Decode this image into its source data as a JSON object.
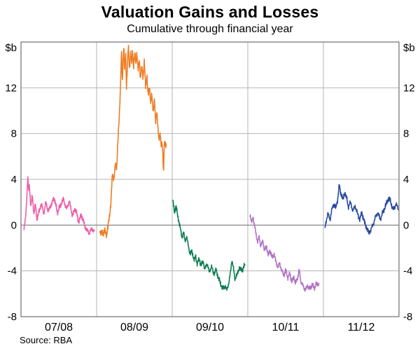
{
  "header": {
    "title": "Valuation Gains and Losses",
    "subtitle": "Cumulative through financial year"
  },
  "footer": {
    "source": "Source: RBA"
  },
  "chart_data": {
    "type": "line",
    "title": "Valuation Gains and Losses",
    "subtitle": "Cumulative through financial year",
    "xlabel": "",
    "ylabel": "$b",
    "unit_label": "$b",
    "ylim": [
      -8,
      16
    ],
    "yticks": [
      -8,
      -4,
      0,
      4,
      8,
      12
    ],
    "grid": true,
    "legend": "none (series labelled by x-axis financial years)",
    "x_categories": [
      "07/08",
      "08/09",
      "09/10",
      "10/11",
      "11/12"
    ],
    "source": "Source: RBA",
    "style": {
      "background": "#ffffff",
      "grid_color": "#b4b4b4",
      "zero_line_color": "#7a7a7a",
      "frame_color": "#6e6e6e",
      "text_color": "#000000"
    },
    "series": [
      {
        "name": "07/08",
        "year_index": 0,
        "color": "#ee5fa7",
        "noise": 0.3,
        "points": [
          [
            0.04,
            -0.4
          ],
          [
            0.06,
            0.6
          ],
          [
            0.075,
            2.2
          ],
          [
            0.09,
            4.2
          ],
          [
            0.1,
            3.0
          ],
          [
            0.11,
            3.6
          ],
          [
            0.13,
            1.6
          ],
          [
            0.15,
            2.6
          ],
          [
            0.17,
            1.0
          ],
          [
            0.19,
            1.8
          ],
          [
            0.21,
            0.5
          ],
          [
            0.24,
            1.2
          ],
          [
            0.27,
            1.9
          ],
          [
            0.3,
            1.0
          ],
          [
            0.33,
            2.0
          ],
          [
            0.36,
            1.2
          ],
          [
            0.4,
            1.8
          ],
          [
            0.44,
            2.4
          ],
          [
            0.48,
            1.1
          ],
          [
            0.52,
            1.7
          ],
          [
            0.56,
            2.3
          ],
          [
            0.6,
            1.4
          ],
          [
            0.64,
            2.1
          ],
          [
            0.68,
            0.8
          ],
          [
            0.72,
            1.5
          ],
          [
            0.76,
            0.3
          ],
          [
            0.8,
            0.9
          ],
          [
            0.85,
            -0.2
          ],
          [
            0.9,
            -0.7
          ],
          [
            0.94,
            -0.3
          ],
          [
            0.97,
            -0.6
          ]
        ]
      },
      {
        "name": "08/09",
        "year_index": 1,
        "color": "#ef7d24",
        "noise": 0.4,
        "points": [
          [
            0.04,
            -0.4
          ],
          [
            0.07,
            -0.8
          ],
          [
            0.1,
            -0.5
          ],
          [
            0.13,
            -0.8
          ],
          [
            0.15,
            -0.2
          ],
          [
            0.17,
            0.8
          ],
          [
            0.19,
            2.0
          ],
          [
            0.21,
            4.6
          ],
          [
            0.23,
            4.0
          ],
          [
            0.25,
            5.4
          ],
          [
            0.265,
            4.9
          ],
          [
            0.28,
            7.0
          ],
          [
            0.3,
            9.5
          ],
          [
            0.315,
            12.0
          ],
          [
            0.33,
            15.2
          ],
          [
            0.34,
            12.4
          ],
          [
            0.35,
            14.4
          ],
          [
            0.36,
            15.8
          ],
          [
            0.37,
            13.5
          ],
          [
            0.385,
            14.9
          ],
          [
            0.395,
            12.1
          ],
          [
            0.41,
            14.3
          ],
          [
            0.42,
            15.6
          ],
          [
            0.435,
            13.7
          ],
          [
            0.45,
            15.1
          ],
          [
            0.465,
            14.0
          ],
          [
            0.475,
            15.4
          ],
          [
            0.49,
            13.8
          ],
          [
            0.505,
            15.0
          ],
          [
            0.52,
            14.1
          ],
          [
            0.53,
            15.2
          ],
          [
            0.55,
            13.4
          ],
          [
            0.565,
            14.6
          ],
          [
            0.58,
            12.7
          ],
          [
            0.6,
            13.9
          ],
          [
            0.615,
            12.9
          ],
          [
            0.63,
            14.2
          ],
          [
            0.65,
            12.1
          ],
          [
            0.665,
            13.1
          ],
          [
            0.68,
            11.3
          ],
          [
            0.7,
            12.2
          ],
          [
            0.715,
            10.5
          ],
          [
            0.73,
            11.5
          ],
          [
            0.75,
            9.9
          ],
          [
            0.765,
            10.9
          ],
          [
            0.78,
            9.1
          ],
          [
            0.795,
            10.0
          ],
          [
            0.81,
            8.5
          ],
          [
            0.825,
            7.5
          ],
          [
            0.84,
            8.1
          ],
          [
            0.855,
            6.7
          ],
          [
            0.865,
            7.3
          ],
          [
            0.875,
            6.6
          ],
          [
            0.885,
            4.3
          ],
          [
            0.895,
            6.9
          ],
          [
            0.91,
            7.3
          ],
          [
            0.92,
            7.0
          ]
        ]
      },
      {
        "name": "09/10",
        "year_index": 2,
        "color": "#0c7d51",
        "noise": 0.27,
        "points": [
          [
            0.01,
            2.1
          ],
          [
            0.03,
            1.1
          ],
          [
            0.05,
            1.7
          ],
          [
            0.07,
            0.9
          ],
          [
            0.09,
            0.3
          ],
          [
            0.11,
            -0.4
          ],
          [
            0.13,
            -1.1
          ],
          [
            0.15,
            -0.6
          ],
          [
            0.17,
            -1.4
          ],
          [
            0.19,
            -1.0
          ],
          [
            0.22,
            -2.0
          ],
          [
            0.24,
            -2.6
          ],
          [
            0.26,
            -2.2
          ],
          [
            0.29,
            -3.1
          ],
          [
            0.31,
            -2.7
          ],
          [
            0.33,
            -3.4
          ],
          [
            0.36,
            -2.9
          ],
          [
            0.38,
            -3.6
          ],
          [
            0.41,
            -3.1
          ],
          [
            0.43,
            -3.9
          ],
          [
            0.46,
            -3.3
          ],
          [
            0.49,
            -4.1
          ],
          [
            0.52,
            -3.6
          ],
          [
            0.55,
            -4.3
          ],
          [
            0.58,
            -3.9
          ],
          [
            0.61,
            -4.6
          ],
          [
            0.64,
            -5.1
          ],
          [
            0.67,
            -5.6
          ],
          [
            0.7,
            -5.3
          ],
          [
            0.72,
            -5.7
          ],
          [
            0.75,
            -5.0
          ],
          [
            0.77,
            -4.2
          ],
          [
            0.79,
            -3.0
          ],
          [
            0.81,
            -3.8
          ],
          [
            0.83,
            -4.7
          ],
          [
            0.86,
            -4.3
          ],
          [
            0.89,
            -3.7
          ],
          [
            0.92,
            -4.0
          ],
          [
            0.96,
            -3.5
          ]
        ]
      },
      {
        "name": "10/11",
        "year_index": 3,
        "color": "#b274c6",
        "noise": 0.27,
        "points": [
          [
            0.03,
            1.0
          ],
          [
            0.05,
            0.2
          ],
          [
            0.07,
            0.7
          ],
          [
            0.09,
            -0.1
          ],
          [
            0.11,
            -0.8
          ],
          [
            0.13,
            -1.5
          ],
          [
            0.15,
            -1.0
          ],
          [
            0.17,
            -1.8
          ],
          [
            0.2,
            -1.4
          ],
          [
            0.22,
            -2.2
          ],
          [
            0.25,
            -1.9
          ],
          [
            0.27,
            -2.6
          ],
          [
            0.3,
            -2.2
          ],
          [
            0.32,
            -2.9
          ],
          [
            0.35,
            -2.5
          ],
          [
            0.37,
            -3.2
          ],
          [
            0.4,
            -3.7
          ],
          [
            0.42,
            -3.3
          ],
          [
            0.45,
            -4.0
          ],
          [
            0.48,
            -4.4
          ],
          [
            0.5,
            -3.9
          ],
          [
            0.53,
            -4.6
          ],
          [
            0.56,
            -4.2
          ],
          [
            0.58,
            -5.0
          ],
          [
            0.61,
            -4.5
          ],
          [
            0.63,
            -5.1
          ],
          [
            0.66,
            -4.6
          ],
          [
            0.68,
            -3.9
          ],
          [
            0.7,
            -4.9
          ],
          [
            0.73,
            -5.3
          ],
          [
            0.76,
            -5.7
          ],
          [
            0.79,
            -5.3
          ],
          [
            0.82,
            -5.6
          ],
          [
            0.85,
            -5.2
          ],
          [
            0.88,
            -5.5
          ],
          [
            0.91,
            -5.1
          ],
          [
            0.94,
            -5.2
          ]
        ]
      },
      {
        "name": "11/12",
        "year_index": 4,
        "color": "#2a4a9f",
        "noise": 0.3,
        "points": [
          [
            0.02,
            -0.3
          ],
          [
            0.04,
            0.5
          ],
          [
            0.06,
            1.0
          ],
          [
            0.09,
            0.5
          ],
          [
            0.11,
            1.3
          ],
          [
            0.14,
            1.9
          ],
          [
            0.16,
            1.4
          ],
          [
            0.19,
            2.3
          ],
          [
            0.21,
            3.5
          ],
          [
            0.23,
            2.8
          ],
          [
            0.26,
            2.2
          ],
          [
            0.28,
            2.9
          ],
          [
            0.31,
            2.3
          ],
          [
            0.33,
            1.6
          ],
          [
            0.36,
            2.0
          ],
          [
            0.39,
            1.2
          ],
          [
            0.42,
            1.7
          ],
          [
            0.45,
            1.0
          ],
          [
            0.48,
            0.5
          ],
          [
            0.51,
            1.1
          ],
          [
            0.54,
            0.3
          ],
          [
            0.57,
            -0.2
          ],
          [
            0.6,
            -0.7
          ],
          [
            0.63,
            -0.4
          ],
          [
            0.66,
            0.1
          ],
          [
            0.69,
            0.7
          ],
          [
            0.72,
            1.1
          ],
          [
            0.75,
            0.5
          ],
          [
            0.78,
            1.0
          ],
          [
            0.81,
            1.5
          ],
          [
            0.84,
            2.0
          ],
          [
            0.87,
            2.4
          ],
          [
            0.9,
            1.8
          ],
          [
            0.93,
            1.3
          ],
          [
            0.96,
            1.9
          ],
          [
            0.99,
            1.4
          ]
        ]
      }
    ]
  }
}
